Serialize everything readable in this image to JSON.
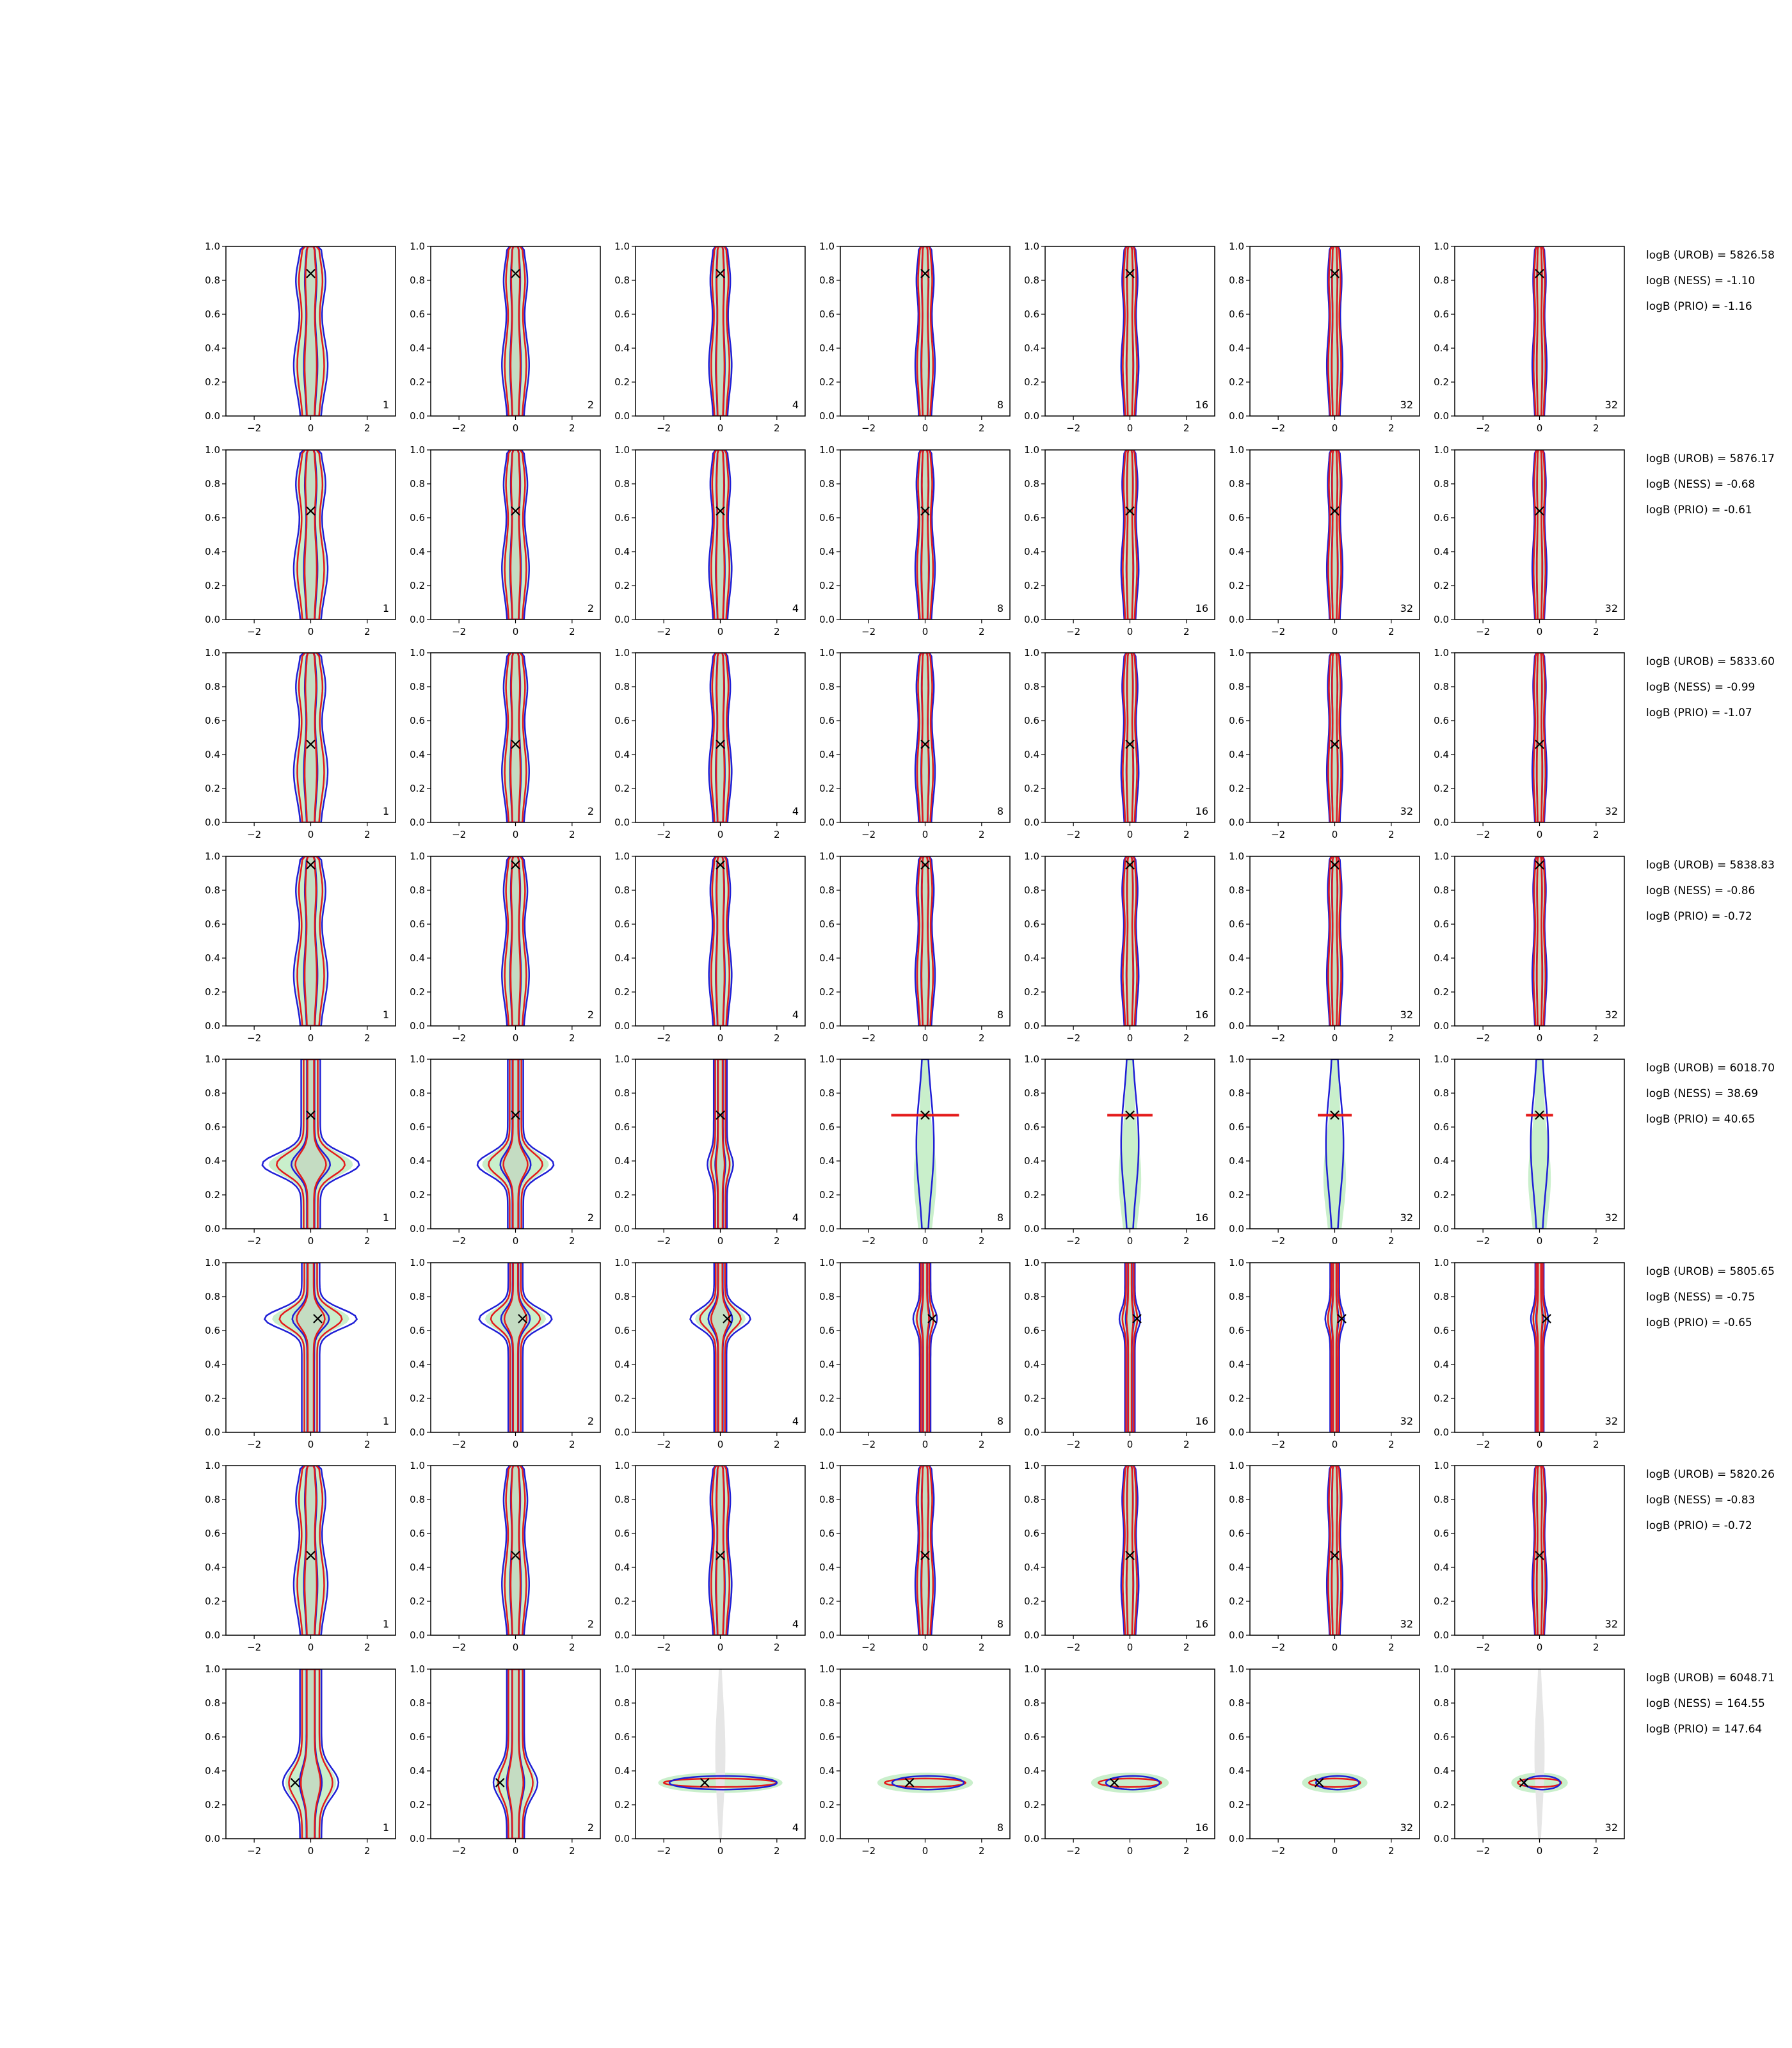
{
  "chart_data": {
    "type": "contour-grid",
    "rows": 8,
    "cols": 7,
    "x_range": [
      -3,
      3
    ],
    "y_range": [
      0,
      1
    ],
    "x_ticks": [
      -2,
      0,
      2
    ],
    "y_ticks": [
      0.0,
      0.2,
      0.4,
      0.6,
      0.8,
      1.0
    ],
    "x_tick_labels": [
      "−2",
      "0",
      "2"
    ],
    "y_tick_labels": [
      "0.0",
      "0.2",
      "0.4",
      "0.6",
      "0.8",
      "1.0"
    ],
    "grid": false,
    "panel_labels": [
      "1",
      "2",
      "4",
      "8",
      "16",
      "32",
      "32"
    ],
    "colors": {
      "fill_outer": "#c9efcb",
      "fill_inner": "#c4dcc2",
      "fill_gray": "#e6e6e6",
      "contour_red": "#e41b1b",
      "contour_blue": "#1f1fd6",
      "marker": "#000000"
    },
    "marker_symbol": "×",
    "row_markers": [
      {
        "x": 0.0,
        "y": 0.84
      },
      {
        "x": 0.0,
        "y": 0.64
      },
      {
        "x": 0.0,
        "y": 0.46
      },
      {
        "x": 0.0,
        "y": 0.95
      },
      {
        "x": 0.0,
        "y": 0.67
      },
      {
        "x": 0.25,
        "y": 0.67
      },
      {
        "x": 0.0,
        "y": 0.47
      },
      {
        "x": -0.55,
        "y": 0.33
      }
    ],
    "row_annotations": [
      [
        "logB (UROB) = 5826.58",
        "logB (NESS) = -1.10",
        "logB (PRIO) = -1.16"
      ],
      [
        "logB (UROB) = 5876.17",
        "logB (NESS) = -0.68",
        "logB (PRIO) = -0.61"
      ],
      [
        "logB (UROB) = 5833.60",
        "logB (NESS) = -0.99",
        "logB (PRIO) = -1.07"
      ],
      [
        "logB (UROB) = 5838.83",
        "logB (NESS) = -0.86",
        "logB (PRIO) = -0.72"
      ],
      [
        "logB (UROB) = 6018.70",
        "logB (NESS) = 38.69",
        "logB (PRIO) = 40.65"
      ],
      [
        "logB (UROB) = 5805.65",
        "logB (NESS) = -0.75",
        "logB (PRIO) = -0.65"
      ],
      [
        "logB (UROB) = 5820.26",
        "logB (NESS) = -0.83",
        "logB (PRIO) = -0.72"
      ],
      [
        "logB (UROB) = 6048.71",
        "logB (NESS) = 164.55",
        "logB (PRIO) = 147.64"
      ]
    ],
    "row_style": [
      "vertical",
      "vertical",
      "vertical",
      "vertical",
      "cross-flatten",
      "cross",
      "vertical",
      "flatten"
    ]
  }
}
